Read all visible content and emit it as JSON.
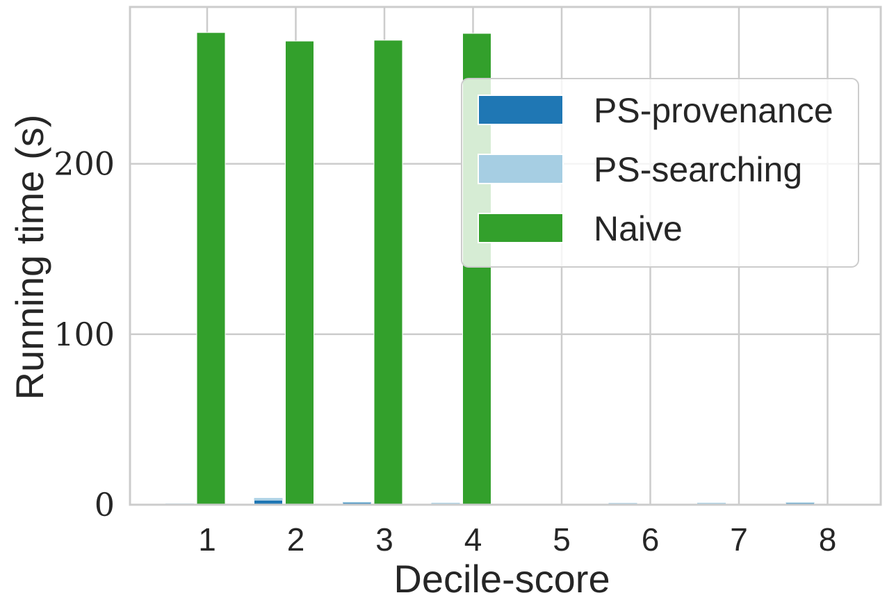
{
  "chart_data": {
    "type": "bar",
    "title": "",
    "xlabel": "Decile-score",
    "ylabel": "Running time (s)",
    "categories": [
      "1",
      "2",
      "3",
      "4",
      "5",
      "6",
      "7",
      "8"
    ],
    "ylim": [
      0,
      292
    ],
    "yticks": [
      0,
      100,
      200
    ],
    "grid": true,
    "legend_position": "upper-right",
    "series": [
      {
        "name": "PS-provenance",
        "color": "#1f77b4",
        "values": [
          0.5,
          2.7,
          1.3,
          0.8,
          0.3,
          0.8,
          0.9,
          1.2
        ]
      },
      {
        "name": "PS-searching",
        "color": "#a6cee3",
        "values": [
          0.2,
          1.2,
          0.3,
          0.3,
          0.2,
          0.2,
          0.2,
          0.2
        ]
      },
      {
        "name": "Naive",
        "color": "#33a02c",
        "values": [
          277,
          272,
          272.5,
          276.5,
          null,
          null,
          null,
          null
        ]
      }
    ],
    "note_stack": "PS-searching is stacked on top of PS-provenance"
  }
}
